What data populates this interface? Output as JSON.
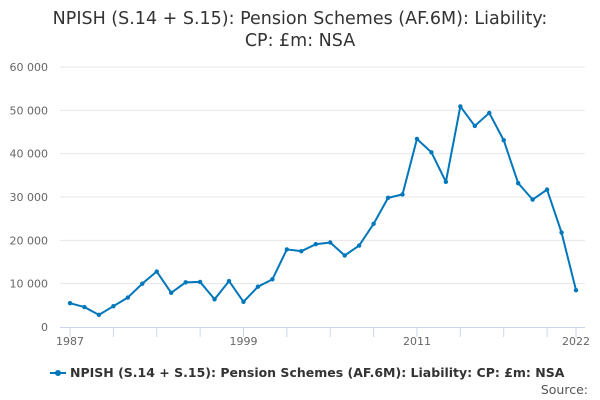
{
  "chart_data": {
    "type": "line",
    "title_line1": "NPISH (S.14 + S.15): Pension Schemes (AF.6M): Liability:",
    "title_line2": "CP: £m: NSA",
    "xlabel": "",
    "ylabel": "",
    "ylim": [
      0,
      60000
    ],
    "yticks": [
      0,
      10000,
      20000,
      30000,
      40000,
      50000,
      60000
    ],
    "ytick_labels": [
      "0",
      "10 000",
      "20 000",
      "30 000",
      "40 000",
      "50 000",
      "60 000"
    ],
    "xtick_labels": [
      "1987",
      "1999",
      "2011",
      "2022"
    ],
    "x": [
      1987,
      1988,
      1989,
      1990,
      1991,
      1992,
      1993,
      1994,
      1995,
      1996,
      1997,
      1998,
      1999,
      2000,
      2001,
      2002,
      2003,
      2004,
      2005,
      2006,
      2007,
      2008,
      2009,
      2010,
      2011,
      2012,
      2013,
      2014,
      2015,
      2016,
      2017,
      2018,
      2019,
      2020,
      2021,
      2022
    ],
    "series": [
      {
        "name": "NPISH (S.14 + S.15): Pension Schemes (AF.6M): Liability: CP: £m: NSA",
        "color": "#0077bb",
        "values": [
          5500,
          4600,
          2800,
          4800,
          6800,
          10000,
          12800,
          7900,
          10300,
          10400,
          6400,
          10600,
          5800,
          9300,
          11000,
          17900,
          17500,
          19100,
          19500,
          16500,
          18800,
          23800,
          29800,
          30600,
          43400,
          40300,
          33500,
          50900,
          46400,
          49400,
          43100,
          33200,
          29400,
          31700,
          21800,
          8500
        ]
      }
    ],
    "grid": true,
    "legend": "bottom-left"
  },
  "source_label": "Source:"
}
